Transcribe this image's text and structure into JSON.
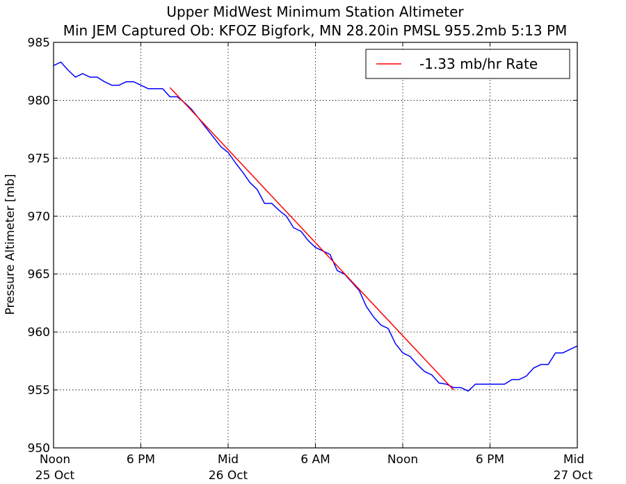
{
  "chart_data": {
    "type": "line",
    "title": "Upper MidWest Minimum Station Altimeter",
    "subtitle": "Min JEM Captured Ob: KFOZ Bigfork, MN 28.20in PMSL 955.2mb 5:13 PM",
    "xlabel": "",
    "ylabel": "Pressure Altimeter [mb]",
    "xlim_hours_since_noon_25_oct": [
      0,
      36
    ],
    "ylim": [
      950,
      985
    ],
    "grid": true,
    "legend_position": "top-right",
    "x_ticks": [
      {
        "hours": 0,
        "label1": "Noon",
        "label2": "25 Oct"
      },
      {
        "hours": 6,
        "label1": "6 PM",
        "label2": ""
      },
      {
        "hours": 12,
        "label1": "Mid",
        "label2": "26 Oct"
      },
      {
        "hours": 18,
        "label1": "6 AM",
        "label2": ""
      },
      {
        "hours": 24,
        "label1": "Noon",
        "label2": ""
      },
      {
        "hours": 30,
        "label1": "6 PM",
        "label2": ""
      },
      {
        "hours": 36,
        "label1": "Mid",
        "label2": "27 Oct"
      }
    ],
    "y_ticks": [
      950,
      955,
      960,
      965,
      970,
      975,
      980,
      985
    ],
    "series": [
      {
        "name": "",
        "color": "#0000ff",
        "x": [
          0,
          0.5,
          1,
          1.5,
          2,
          2.5,
          3,
          3.5,
          4,
          4.5,
          5,
          5.5,
          6,
          6.5,
          7,
          7.5,
          8,
          8.5,
          9,
          9.5,
          10,
          10.5,
          11,
          11.5,
          12,
          12.5,
          13,
          13.5,
          14,
          14.5,
          15,
          15.5,
          16,
          16.5,
          17,
          17.5,
          18,
          18.5,
          19,
          19.5,
          20,
          20.5,
          21,
          21.5,
          22,
          22.5,
          23,
          23.5,
          24,
          24.5,
          25,
          25.5,
          26,
          26.5,
          27,
          27.5,
          28,
          28.5,
          29,
          29.5,
          30,
          30.5,
          31,
          31.5,
          32,
          32.5,
          33,
          33.5,
          34,
          34.5,
          35,
          35.5,
          36
        ],
        "values": [
          983.0,
          983.3,
          982.6,
          982.0,
          982.3,
          982.0,
          982.0,
          981.6,
          981.3,
          981.3,
          981.6,
          981.6,
          981.3,
          981.0,
          981.0,
          981.0,
          980.3,
          980.3,
          979.8,
          979.2,
          978.4,
          977.6,
          976.8,
          976.0,
          975.5,
          974.6,
          973.8,
          972.9,
          972.3,
          971.1,
          971.1,
          970.5,
          970.0,
          969.0,
          968.7,
          967.9,
          967.3,
          967.0,
          966.7,
          965.3,
          965.0,
          964.3,
          963.6,
          962.2,
          961.3,
          960.6,
          960.3,
          959.0,
          958.2,
          957.9,
          957.2,
          956.6,
          956.3,
          955.6,
          955.5,
          955.2,
          955.2,
          954.9,
          955.5,
          955.5,
          955.5,
          955.5,
          955.5,
          955.9,
          955.9,
          956.2,
          956.9,
          957.2,
          957.2,
          958.2,
          958.2,
          958.5,
          958.8
        ]
      },
      {
        "name": "-1.33 mb/hr Rate",
        "color": "#ff0000",
        "x": [
          8,
          27.5
        ],
        "values": [
          981.1,
          955.0
        ]
      }
    ]
  }
}
